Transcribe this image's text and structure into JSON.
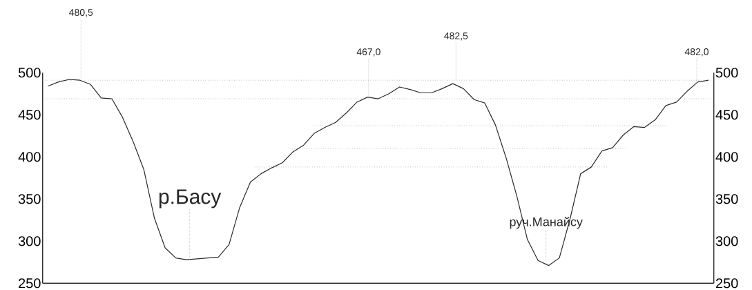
{
  "chart_data": {
    "type": "line",
    "categories": [
      null,
      null,
      null,
      null,
      null,
      null,
      null,
      null,
      null,
      null,
      null,
      null,
      null,
      null,
      null,
      null,
      null,
      null,
      null,
      null,
      null,
      null,
      null,
      null,
      null,
      null,
      null,
      null,
      null,
      null,
      null,
      null,
      null,
      null,
      null,
      null,
      null,
      null,
      null,
      null,
      null,
      null,
      null,
      null,
      null,
      null,
      null,
      null,
      null,
      null,
      null,
      null,
      null,
      null,
      null,
      null,
      null,
      null,
      null,
      null,
      null,
      null,
      null
    ],
    "values": [
      484,
      489,
      492,
      491,
      486,
      470,
      469,
      447,
      418,
      385,
      327,
      292,
      280,
      278,
      279,
      280,
      281,
      296,
      340,
      370,
      380,
      387,
      393,
      406,
      414,
      428,
      435,
      441,
      452,
      465,
      471,
      469,
      475,
      483,
      480,
      476,
      476,
      481,
      487,
      481,
      468,
      464,
      438,
      399,
      354,
      302,
      277,
      271,
      280,
      326,
      380,
      388,
      407,
      411,
      426,
      436,
      435,
      444,
      461,
      465,
      478,
      489,
      491
    ],
    "color": "#2b2b2b",
    "ylim": [
      250,
      500
    ],
    "yticks": [
      250,
      300,
      350,
      400,
      450,
      500
    ],
    "y2lim": [
      250,
      500
    ],
    "y2ticks": [
      250,
      300,
      350,
      400,
      450,
      500
    ],
    "tick_labels": "y",
    "marker": "none",
    "line_style": "solid",
    "ref_lines": [
      {
        "axis": "y",
        "value": 491,
        "color": "#9a9a9a",
        "line_style": "dotted"
      },
      {
        "axis": "y",
        "value": 469,
        "color": "#9a9a9a",
        "line_style": "dotted"
      },
      {
        "axis": "y",
        "value": 437,
        "color": "#9a9a9a",
        "line_style": "dotted"
      },
      {
        "axis": "y",
        "value": 410,
        "color": "#9a9a9a",
        "line_style": "dotted"
      },
      {
        "axis": "y",
        "value": 388,
        "color": "#9a9a9a",
        "line_style": "dotted"
      }
    ],
    "annotations": [
      {
        "text": "480,5",
        "y": 491
      },
      {
        "text": "467,0",
        "y": 472
      },
      {
        "text": "482,5",
        "y": 491
      },
      {
        "text": "482,0",
        "y": 491
      },
      {
        "text": "р.Басу",
        "y": 278
      },
      {
        "text": "руч.Манайсу",
        "y": 270
      }
    ]
  }
}
